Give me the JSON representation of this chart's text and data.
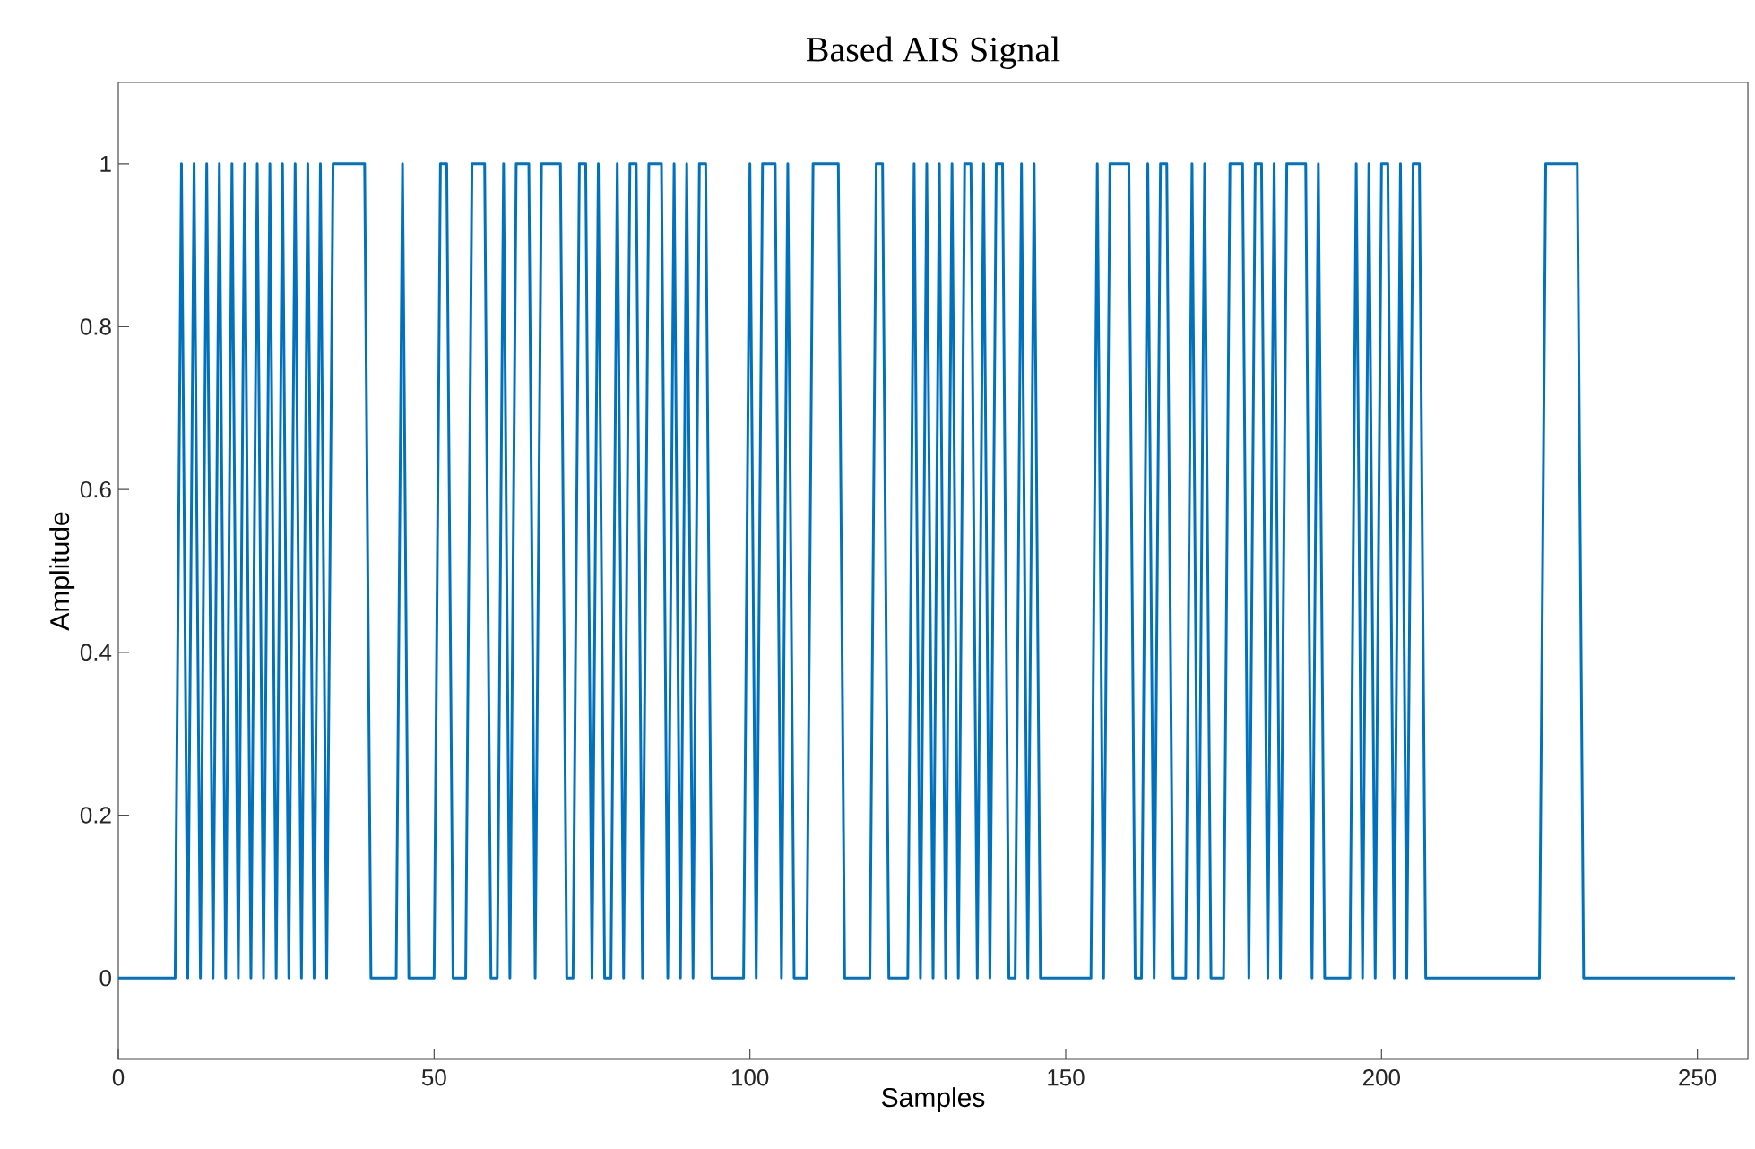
{
  "chart_data": {
    "type": "line",
    "title": "Based AIS Signal",
    "xlabel": "Samples",
    "ylabel": "Amplitude",
    "x": [
      0,
      9,
      10,
      11,
      12,
      13,
      14,
      15,
      16,
      17,
      18,
      19,
      20,
      21,
      22,
      23,
      24,
      25,
      26,
      27,
      28,
      29,
      30,
      31,
      32,
      33,
      34,
      39,
      40,
      44,
      45,
      46,
      50,
      51,
      52,
      53,
      55,
      56,
      58,
      59,
      60,
      61,
      62,
      63,
      65,
      66,
      67,
      70,
      71,
      72,
      73,
      74,
      75,
      76,
      77,
      78,
      79,
      80,
      81,
      82,
      83,
      84,
      86,
      87,
      88,
      89,
      90,
      91,
      92,
      93,
      94,
      99,
      100,
      101,
      102,
      104,
      105,
      106,
      107,
      109,
      110,
      114,
      115,
      119,
      120,
      121,
      122,
      125,
      126,
      127,
      128,
      129,
      130,
      131,
      132,
      133,
      134,
      135,
      136,
      137,
      138,
      139,
      140,
      141,
      142,
      143,
      144,
      145,
      146,
      154,
      155,
      156,
      157,
      160,
      161,
      162,
      163,
      164,
      165,
      166,
      167,
      169,
      170,
      171,
      172,
      173,
      175,
      176,
      178,
      179,
      180,
      181,
      182,
      183,
      184,
      185,
      188,
      189,
      190,
      191,
      195,
      196,
      197,
      198,
      199,
      200,
      201,
      202,
      203,
      204,
      205,
      206,
      207,
      225,
      226,
      231,
      232,
      256
    ],
    "series": [
      {
        "color": "#0072bd",
        "values": [
          0,
          0,
          1,
          0,
          1,
          0,
          1,
          0,
          1,
          0,
          1,
          0,
          1,
          0,
          1,
          0,
          1,
          0,
          1,
          0,
          1,
          0,
          1,
          0,
          1,
          0,
          1,
          1,
          0,
          0,
          1,
          0,
          0,
          1,
          1,
          0,
          0,
          1,
          1,
          0,
          0,
          1,
          0,
          1,
          1,
          0,
          1,
          1,
          0,
          0,
          1,
          1,
          0,
          1,
          0,
          0,
          1,
          0,
          1,
          1,
          0,
          1,
          1,
          0,
          1,
          0,
          1,
          0,
          1,
          1,
          0,
          0,
          1,
          0,
          1,
          1,
          0,
          1,
          0,
          0,
          1,
          1,
          0,
          0,
          1,
          1,
          0,
          0,
          1,
          0,
          1,
          0,
          1,
          0,
          1,
          0,
          1,
          1,
          0,
          1,
          0,
          1,
          1,
          0,
          0,
          1,
          0,
          1,
          0,
          0,
          1,
          0,
          1,
          1,
          0,
          0,
          1,
          0,
          1,
          1,
          0,
          0,
          1,
          0,
          1,
          0,
          0,
          1,
          1,
          0,
          1,
          1,
          0,
          1,
          0,
          1,
          1,
          0,
          1,
          0,
          0,
          1,
          0,
          1,
          0,
          1,
          1,
          0,
          1,
          0,
          1,
          1,
          0,
          0,
          1,
          1,
          0,
          0
        ]
      }
    ],
    "xlim": [
      0,
      258
    ],
    "ylim": [
      -0.1,
      1.1
    ],
    "xticks": [
      0,
      50,
      100,
      150,
      200,
      250
    ],
    "yticks": [
      0,
      0.2,
      0.4,
      0.6,
      0.8,
      1
    ],
    "line_style": "solid",
    "marker": "none"
  }
}
